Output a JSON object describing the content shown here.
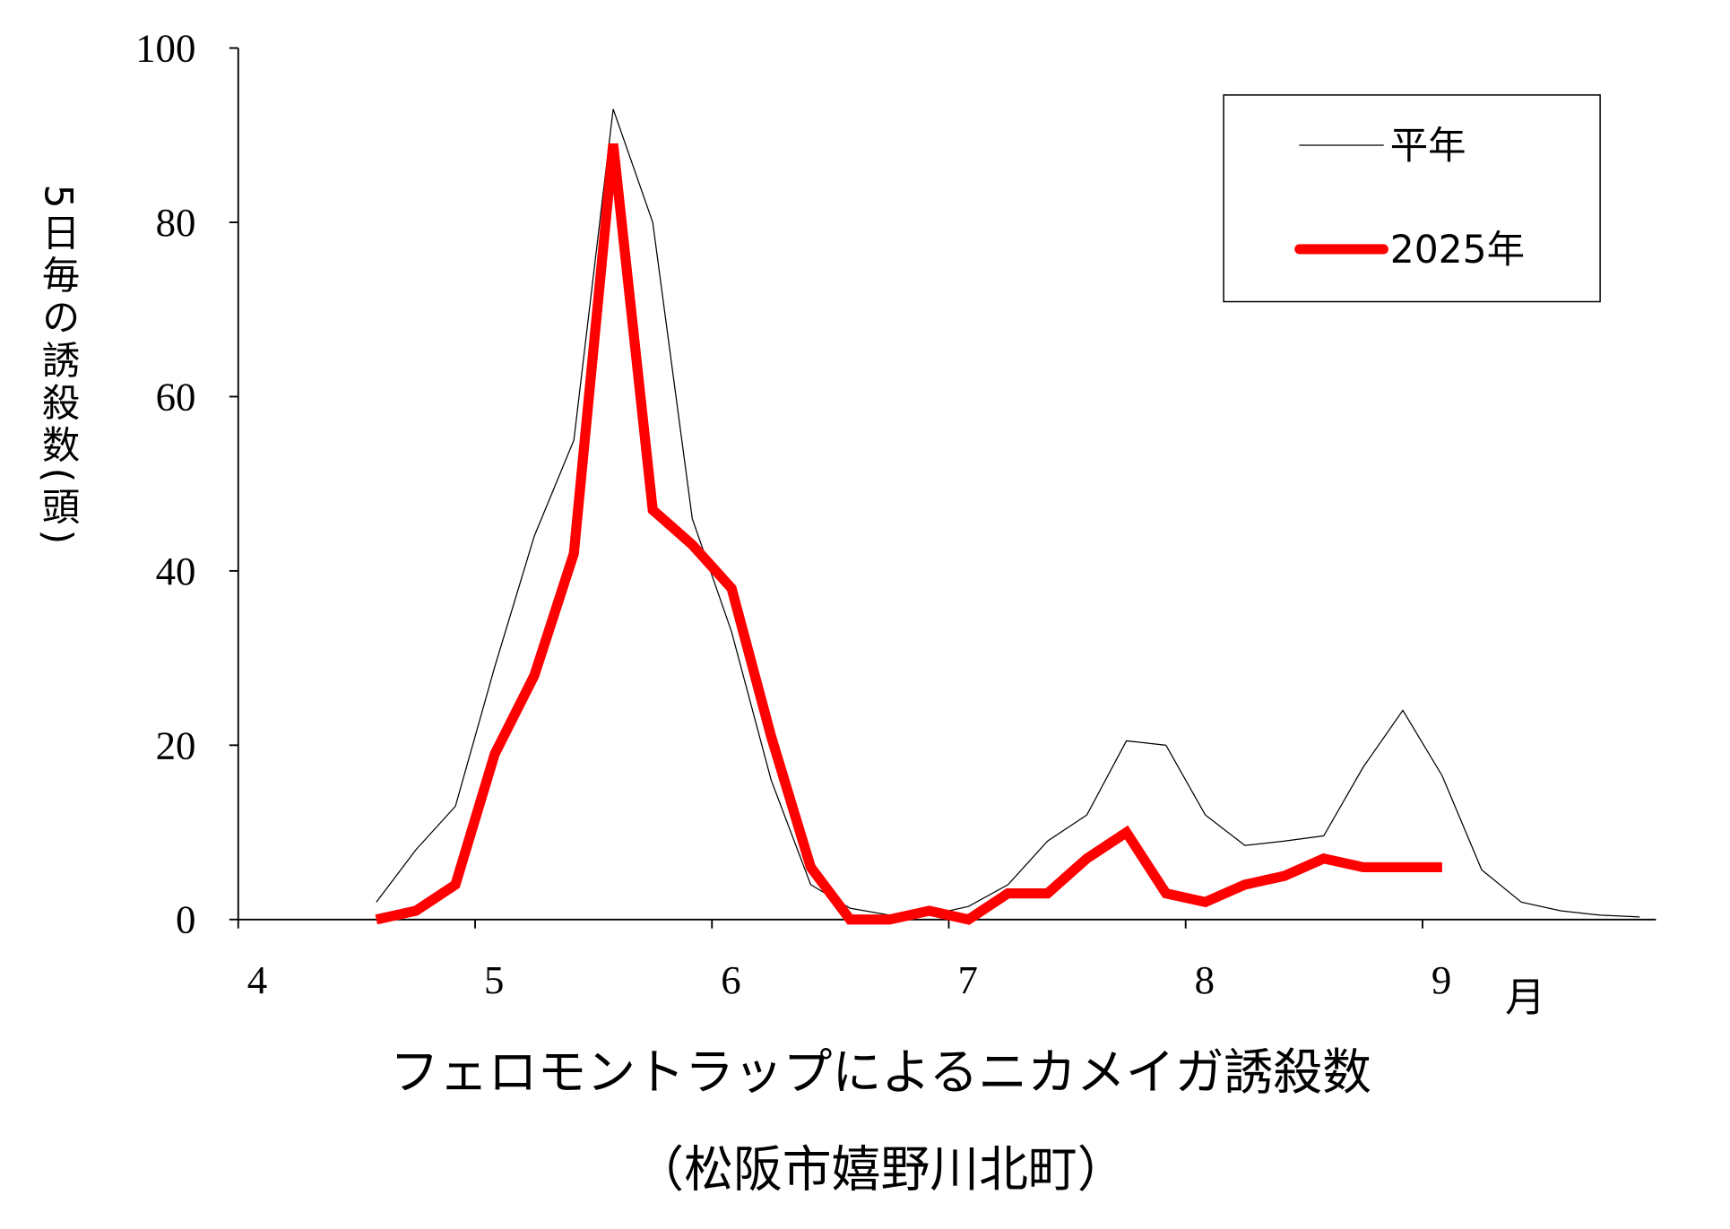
{
  "chart_data": {
    "type": "line",
    "title": "フェロモントラップによるニカメイガ誘殺数",
    "subtitle": "（松阪市嬉野川北町）",
    "y_label": "5日毎の誘殺数(頭)",
    "x_label": "月",
    "x": [
      4.583,
      4.75,
      4.917,
      5.083,
      5.25,
      5.417,
      5.583,
      5.75,
      5.917,
      6.083,
      6.25,
      6.417,
      6.583,
      6.75,
      6.917,
      7.083,
      7.25,
      7.417,
      7.583,
      7.75,
      7.917,
      8.083,
      8.25,
      8.417,
      8.583,
      8.75,
      8.917,
      9.083,
      9.25,
      9.417,
      9.583,
      9.75,
      9.917
    ],
    "series": [
      {
        "name": "平年",
        "color": "#000000",
        "values": [
          2,
          8,
          13,
          29,
          44,
          55,
          93,
          80,
          46,
          33,
          16,
          4,
          1.3,
          0.5,
          0.5,
          1.5,
          4,
          9,
          12,
          20.5,
          20,
          12,
          8.5,
          9,
          9.6,
          17.5,
          24,
          16.5,
          5.7,
          2,
          1,
          0.5,
          0.3
        ]
      },
      {
        "name": "2025年",
        "color": "#ff0000",
        "values": [
          0,
          1,
          4,
          19,
          28,
          42,
          89,
          47,
          43,
          38,
          21,
          6,
          0,
          0,
          1,
          0,
          3,
          3,
          7,
          10,
          3,
          2,
          4,
          5,
          7,
          6,
          6,
          6,
          null,
          null,
          null,
          null,
          null
        ]
      }
    ],
    "xlim": [
      4,
      10
    ],
    "xticks": [
      4,
      5,
      6,
      7,
      8,
      9
    ],
    "ylim": [
      0,
      100
    ],
    "yticks": [
      0,
      20,
      40,
      60,
      80,
      100
    ],
    "grid": false,
    "legend": "upper right"
  }
}
